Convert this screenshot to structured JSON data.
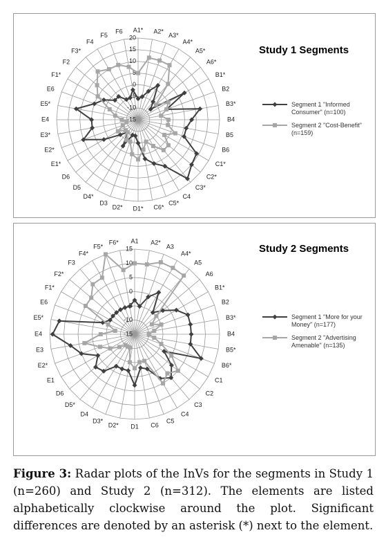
{
  "chart_data": [
    {
      "type": "radar",
      "title": "Study 1 Segments",
      "categories": [
        "A1*",
        "A2*",
        "A3*",
        "A4*",
        "A5*",
        "A6*",
        "B1*",
        "B2",
        "B3*",
        "B4",
        "B5",
        "B6",
        "C1*",
        "C2*",
        "C3*",
        "C4",
        "C5*",
        "C6*",
        "D1*",
        "D2*",
        "D3",
        "D4*",
        "D5",
        "D6",
        "E1*",
        "E2*",
        "E3*",
        "E4",
        "E5*",
        "E6",
        "F1*",
        "F2",
        "F3*",
        "F4",
        "F5",
        "F6"
      ],
      "series": [
        {
          "name": "Segment 1 \"Informed Consumer\" (n=100)",
          "color": "#404040",
          "marker": "diamond",
          "values": [
            -6,
            -5,
            -2,
            2,
            -5,
            -8,
            8,
            -2,
            12,
            8,
            6,
            6,
            14,
            15,
            18,
            8,
            5,
            2,
            -5,
            -8,
            -8,
            -2,
            -8,
            -5,
            2,
            10,
            5,
            5,
            12,
            5,
            2,
            -2,
            -2,
            -5,
            -5,
            -2
          ]
        },
        {
          "name": "Segment 2 \"Cost-Benefit\" (n=159)",
          "color": "#a6a6a6",
          "marker": "square",
          "values": [
            5,
            12,
            12,
            12,
            5,
            -5,
            0,
            -2,
            -5,
            -2,
            -2,
            2,
            -2,
            2,
            2,
            -2,
            -5,
            -2,
            2,
            0,
            -5,
            -5,
            -8,
            -8,
            -5,
            -8,
            -10,
            -8,
            -5,
            -2,
            5,
            8,
            12,
            10,
            10,
            8
          ]
        }
      ],
      "ylim": [
        -15,
        20
      ],
      "yticks": [
        -15,
        -10,
        -5,
        0,
        5,
        10,
        15,
        20
      ],
      "grid": true
    },
    {
      "type": "radar",
      "title": "Study 2 Segments",
      "categories": [
        "A1",
        "A2*",
        "A3",
        "A4*",
        "A5",
        "A6",
        "B1*",
        "B2",
        "B3*",
        "B4",
        "B5*",
        "B6*",
        "C1",
        "C2",
        "C3",
        "C4",
        "C5",
        "C6",
        "D1",
        "D2*",
        "D3*",
        "D4",
        "D5*",
        "D6",
        "E1",
        "E2*",
        "E3",
        "E4",
        "E5*",
        "E6",
        "F1*",
        "F2*",
        "F3",
        "F4*",
        "F5*",
        "F6*"
      ],
      "series": [
        {
          "name": "Segment 1 \"More for your Money\" (n=177)",
          "color": "#404040",
          "marker": "diamond",
          "values": [
            -3,
            -5,
            -1,
            2,
            -5,
            -2,
            2,
            5,
            5,
            5,
            5,
            10,
            -3,
            2,
            5,
            3,
            -2,
            -3,
            3,
            -2,
            -2,
            -2,
            2,
            3,
            0,
            5,
            8,
            14,
            12,
            -3,
            -5,
            -5,
            -5,
            -5,
            -5,
            -5
          ]
        },
        {
          "name": "Segment 2 \"Advertising Amenable\" (n=135)",
          "color": "#a6a6a6",
          "marker": "square",
          "values": [
            10,
            10,
            12,
            12,
            12,
            -5,
            -8,
            -5,
            -8,
            -10,
            -8,
            -5,
            0,
            5,
            3,
            5,
            -5,
            -5,
            -3,
            -5,
            -10,
            -10,
            -10,
            -8,
            -5,
            -2,
            3,
            -3,
            -8,
            -5,
            5,
            5,
            8,
            8,
            15,
            8
          ]
        }
      ],
      "ylim": [
        -15,
        15
      ],
      "yticks": [
        -15,
        -10,
        -5,
        0,
        5,
        10,
        15
      ],
      "grid": true
    }
  ],
  "caption": {
    "label": "Figure 3:",
    "text": "Radar plots of the InVs for the segments in Study 1 (n=260) and Study 2 (n=312). The elements are listed alphabetically clockwise around the plot. Significant differences are denoted by an asterisk (*) next to the element."
  }
}
